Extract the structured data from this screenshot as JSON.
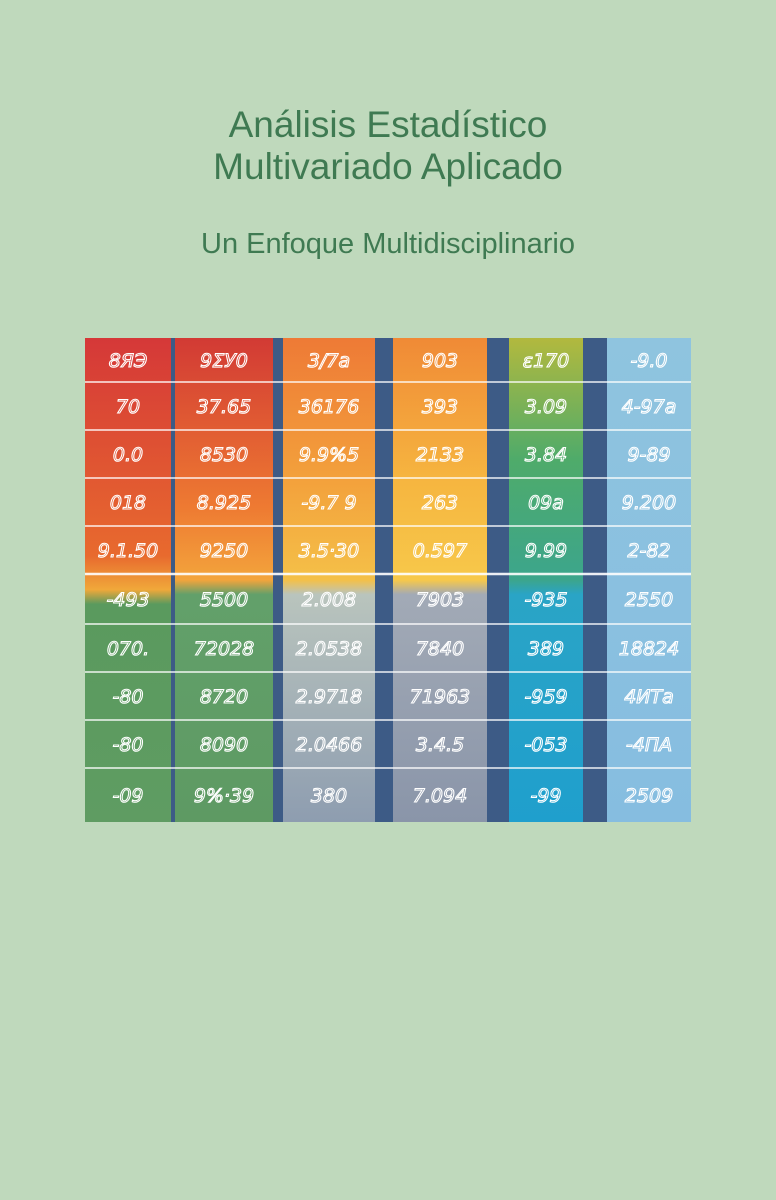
{
  "cover": {
    "title_line1": "Análisis Estadístico",
    "title_line2": "Multivariado Aplicado",
    "subtitle": "Un Enfoque Multidisciplinario"
  },
  "illustration": {
    "description_icon": "handwritten-spreadsheet-illustration",
    "palette": {
      "background": "#bfd9bc",
      "text": "#3f7a52"
    },
    "rows": [
      [
        "8ЯЭ",
        "9ΣУ0",
        "3/7a",
        "903",
        "ε170",
        "-9.0"
      ],
      [
        "70",
        "37.65",
        "36176",
        "393",
        "3.09",
        "4-97a"
      ],
      [
        "0.0",
        "8530",
        "9.9%5",
        "2133",
        "3.84",
        "9-89"
      ],
      [
        "018",
        "8.925",
        "-9.7 9",
        "263",
        "09a",
        "9.200"
      ],
      [
        "9.1.50",
        "9250",
        "3.5·30",
        "0.597",
        "9.99",
        "2-82"
      ],
      [
        "-493",
        "5500",
        "2.008",
        "7903",
        "-935",
        "2550"
      ],
      [
        "070.",
        "72028",
        "2.0538",
        "7840",
        "389",
        "18824"
      ],
      [
        "-80",
        "8720",
        "2.9718",
        "71963",
        "-959",
        "4ИТа"
      ],
      [
        "-80",
        "8090",
        "2.0466",
        "3.4.5",
        "-053",
        "-4ПА"
      ],
      [
        "-09",
        "9%·39",
        "380",
        "7.094",
        "-99",
        "2509"
      ]
    ]
  }
}
